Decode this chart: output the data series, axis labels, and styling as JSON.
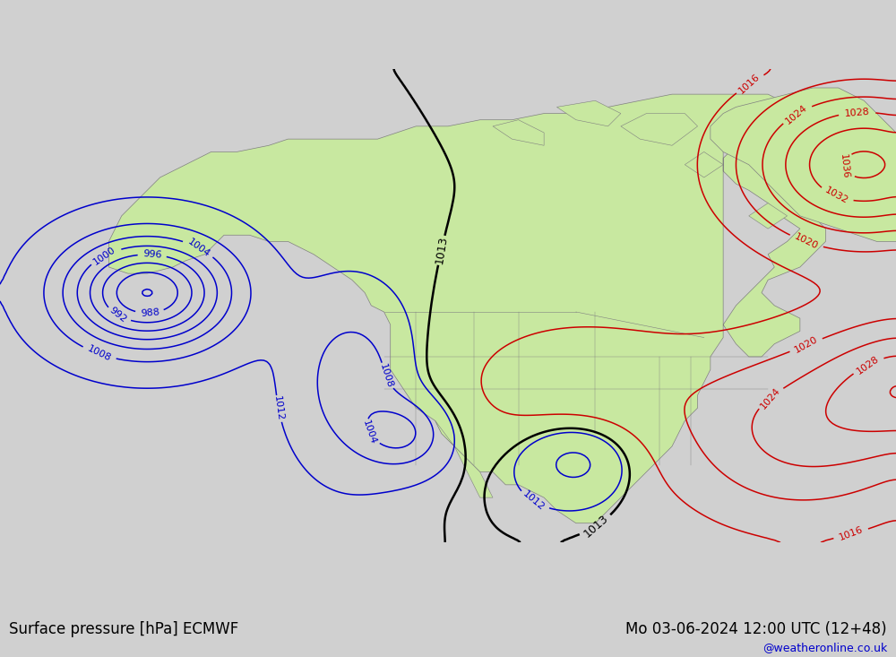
{
  "title_left": "Surface pressure [hPa] ECMWF",
  "title_right": "Mo 03-06-2024 12:00 UTC (12+48)",
  "watermark": "@weatheronline.co.uk",
  "bg_color": "#d0d0d0",
  "land_color": "#c8e8a0",
  "ocean_color": "#d0d0d0",
  "border_color": "#808080",
  "blue": "#0000cc",
  "red": "#cc0000",
  "black": "#000000",
  "lw_isobar": 1.1,
  "lw_black": 1.8,
  "label_fs": 8,
  "bottom_fs": 12,
  "wm_fs": 9,
  "wm_color": "#0000cc",
  "figw": 10.0,
  "figh": 7.33,
  "dpi": 100,
  "xlim": [
    -185,
    -45
  ],
  "ylim": [
    13,
    87
  ]
}
